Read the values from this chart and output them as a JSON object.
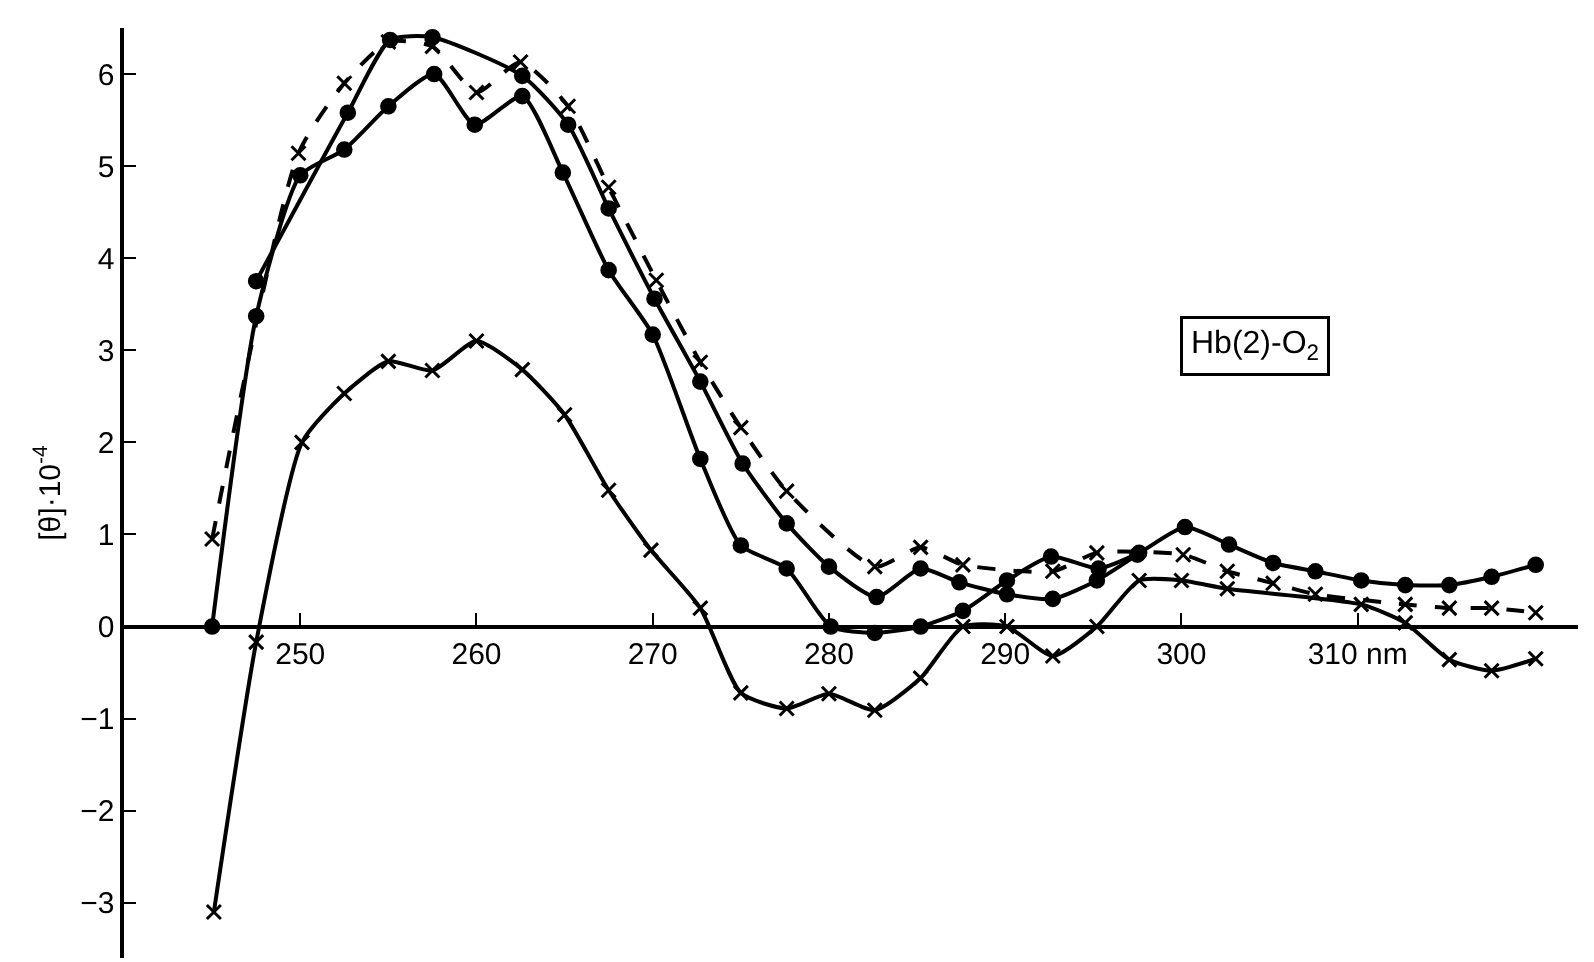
{
  "chart_data": {
    "type": "line",
    "ylabel": "[θ]·10$^{-4}$",
    "annotations": [
      "Hb(2)-O$_{2}$"
    ],
    "xlim": [
      240,
      322.5
    ],
    "xticks": [
      250,
      260,
      270,
      280,
      290,
      300,
      {
        "value": 310,
        "label": "310 nm"
      }
    ],
    "ylim": [
      -3.6,
      6.5
    ],
    "yticks": [
      -3,
      -2,
      -1,
      0,
      1,
      2,
      3,
      4,
      5,
      6
    ],
    "grid": false,
    "series": [
      {
        "color": "#000000",
        "line_style": "dashed",
        "marker": "cross",
        "x": [
          245,
          249.9,
          252.5,
          255,
          257.5,
          260,
          262.5,
          265.2,
          267.5,
          270.2,
          272.7,
          275,
          277.6,
          282.6,
          285.2,
          287.6,
          292.7,
          295.2,
          300.1,
          302.6,
          305.2,
          307.6,
          312.7,
          315.2,
          317.6,
          320.1
        ],
        "values": [
          0.95,
          5.14,
          5.9,
          6.35,
          6.3,
          5.8,
          6.13,
          5.65,
          4.77,
          3.76,
          2.87,
          2.16,
          1.47,
          0.65,
          0.86,
          0.67,
          0.6,
          0.8,
          0.78,
          0.6,
          0.47,
          0.35,
          0.24,
          0.2,
          0.2,
          0.15
        ]
      },
      {
        "color": "#000000",
        "line_style": "solid",
        "marker": "circle",
        "x": [
          247.5,
          252.7,
          255.1,
          257.5,
          262.6,
          265.2,
          267.5,
          270.1,
          272.7,
          275.1,
          277.6,
          280,
          282.7,
          285.2,
          287.4,
          290.1,
          292.7,
          295.2,
          297.5
        ],
        "values": [
          3.75,
          5.58,
          6.37,
          6.4,
          5.98,
          5.45,
          4.54,
          3.56,
          2.66,
          1.77,
          1.12,
          0.65,
          0.32,
          0.63,
          0.48,
          0.35,
          0.3,
          0.5,
          0.78
        ]
      },
      {
        "color": "#000000",
        "line_style": "solid",
        "marker": "circle",
        "x": [
          245,
          247.5,
          250,
          252.5,
          255,
          257.6,
          259.9,
          262.6,
          264.9,
          267.5,
          270,
          272.7,
          275,
          277.6,
          280.1,
          282.6,
          285.2,
          287.6,
          290.1,
          292.6,
          295.3,
          297.6,
          300.2,
          302.7,
          305.2,
          307.6,
          310.2,
          312.7,
          315.2,
          317.6,
          320.1
        ],
        "values": [
          0,
          3.37,
          4.9,
          5.18,
          5.65,
          6,
          5.45,
          5.76,
          4.93,
          3.87,
          3.17,
          1.82,
          0.88,
          0.63,
          0,
          -0.07,
          0,
          0.17,
          0.5,
          0.76,
          0.63,
          0.8,
          1.08,
          0.89,
          0.69,
          0.6,
          0.5,
          0.45,
          0.45,
          0.54,
          0.67
        ]
      },
      {
        "color": "#000000",
        "line_style": "solid",
        "marker": "cross",
        "x": [
          245.1,
          247.5,
          250.1,
          252.5,
          255,
          257.5,
          260,
          262.6,
          265,
          267.5,
          269.9,
          272.7,
          275,
          277.6,
          280,
          282.6,
          285.2,
          287.6,
          290.1,
          292.7,
          295.2,
          297.6,
          300,
          302.6,
          310.2,
          312.7,
          315.2,
          317.6,
          320.1
        ],
        "values": [
          -3.1,
          -0.17,
          2,
          2.53,
          2.88,
          2.78,
          3.1,
          2.79,
          2.3,
          1.48,
          0.83,
          0.2,
          -0.72,
          -0.89,
          -0.73,
          -0.91,
          -0.56,
          0,
          0,
          -0.32,
          0,
          0.5,
          0.5,
          0.41,
          0.24,
          0.04,
          -0.36,
          -0.48,
          -0.35
        ]
      }
    ]
  }
}
